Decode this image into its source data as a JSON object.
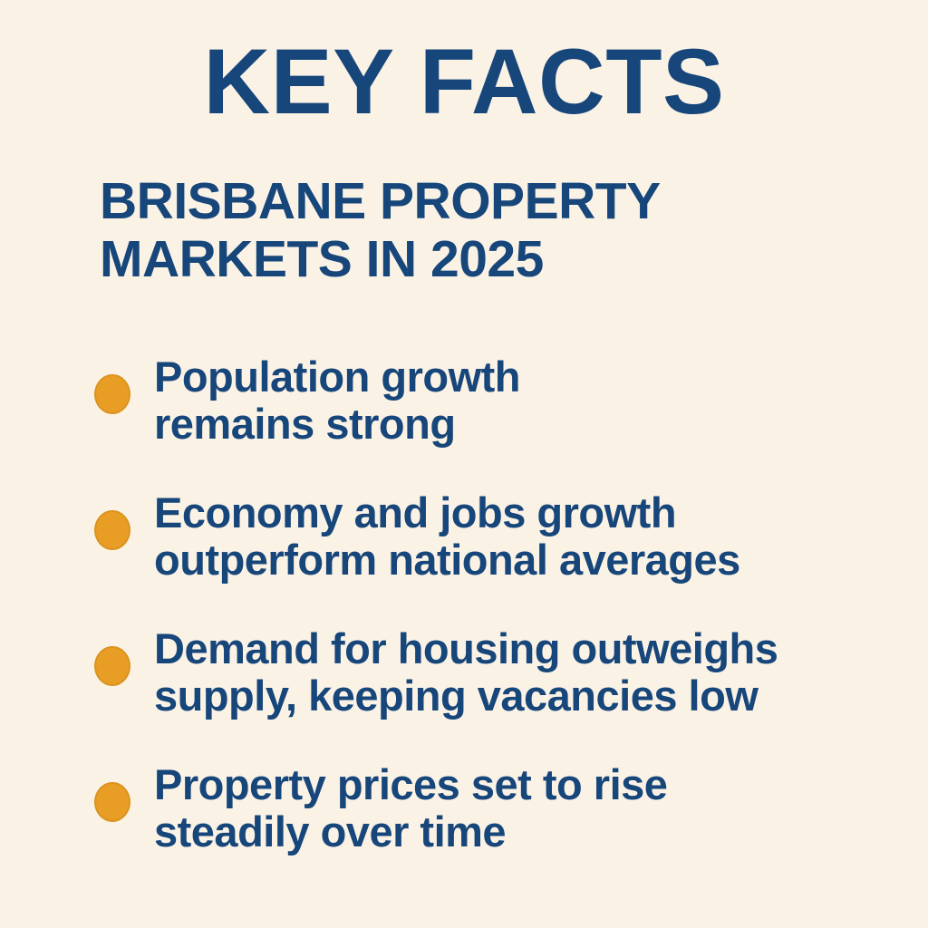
{
  "page": {
    "background_color": "#FBF2E6",
    "text_color": "#17467A",
    "bullet_color": "#E89D25"
  },
  "header": {
    "title": "KEY FACTS",
    "subtitle": "BRISBANE PROPERTY MARKETS IN 2025"
  },
  "facts": [
    {
      "text": "Population growth remains strong",
      "lines": [
        "Population growth",
        "remains strong"
      ]
    },
    {
      "text": "Economy and jobs growth outperform national averages",
      "lines": [
        "Economy and jobs growth",
        "outperform national averages"
      ]
    },
    {
      "text": "Demand for housing outweighs supply, keeping vacancies low",
      "lines": [
        "Demand for housing outweighs",
        "supply, keeping vacancies low"
      ]
    },
    {
      "text": "Property prices set to rise steadily over time",
      "lines": [
        "Property prices set to rise",
        "steadily over time"
      ]
    }
  ]
}
